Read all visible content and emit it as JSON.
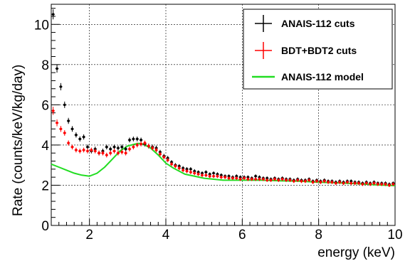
{
  "chart_data": {
    "type": "scatter",
    "title": "",
    "xlabel": "energy (keV)",
    "ylabel": "Rate (counts/keV/kg/day)",
    "xlim": [
      1,
      10
    ],
    "ylim": [
      0,
      11
    ],
    "x_ticks": [
      2,
      4,
      6,
      8,
      10
    ],
    "x_tick_labels": [
      "2",
      "4",
      "6",
      "8",
      "10"
    ],
    "y_ticks": [
      0,
      2,
      4,
      6,
      8,
      10
    ],
    "y_tick_labels": [
      "0",
      "2",
      "4",
      "6",
      "8",
      "10"
    ],
    "grid": true,
    "legend_position": "top-right",
    "series": [
      {
        "name": "ANAIS-112 cuts",
        "kind": "points-with-errors",
        "color": "#000000",
        "x": [
          1.05,
          1.15,
          1.25,
          1.35,
          1.45,
          1.55,
          1.65,
          1.75,
          1.85,
          1.95,
          2.05,
          2.15,
          2.25,
          2.35,
          2.45,
          2.55,
          2.65,
          2.75,
          2.85,
          2.95,
          3.05,
          3.15,
          3.25,
          3.35,
          3.45,
          3.55,
          3.65,
          3.75,
          3.85,
          3.95,
          4.05,
          4.15,
          4.25,
          4.35,
          4.45,
          4.55,
          4.65,
          4.75,
          4.85,
          4.95,
          5.05,
          5.15,
          5.25,
          5.35,
          5.45,
          5.55,
          5.65,
          5.75,
          5.85,
          5.95,
          6.05,
          6.15,
          6.25,
          6.35,
          6.45,
          6.55,
          6.65,
          6.75,
          6.85,
          6.95,
          7.05,
          7.15,
          7.25,
          7.35,
          7.45,
          7.55,
          7.65,
          7.75,
          7.85,
          7.95,
          8.05,
          8.15,
          8.25,
          8.35,
          8.45,
          8.55,
          8.65,
          8.75,
          8.85,
          8.95,
          9.05,
          9.15,
          9.25,
          9.35,
          9.45,
          9.55,
          9.65,
          9.75,
          9.85,
          9.95
        ],
        "y": [
          10.5,
          7.8,
          6.9,
          6.0,
          5.2,
          4.8,
          4.5,
          4.3,
          4.4,
          3.9,
          3.7,
          3.8,
          3.6,
          3.7,
          3.9,
          3.8,
          3.9,
          3.85,
          3.9,
          3.8,
          4.25,
          4.3,
          4.3,
          4.25,
          4.05,
          3.95,
          3.9,
          3.85,
          3.65,
          3.45,
          3.35,
          3.15,
          3.0,
          2.95,
          2.85,
          2.8,
          2.8,
          2.7,
          2.65,
          2.6,
          2.65,
          2.55,
          2.6,
          2.55,
          2.5,
          2.45,
          2.45,
          2.4,
          2.45,
          2.4,
          2.4,
          2.4,
          2.35,
          2.45,
          2.4,
          2.35,
          2.35,
          2.3,
          2.35,
          2.3,
          2.35,
          2.3,
          2.3,
          2.25,
          2.3,
          2.25,
          2.25,
          2.3,
          2.2,
          2.25,
          2.2,
          2.25,
          2.2,
          2.2,
          2.15,
          2.2,
          2.15,
          2.2,
          2.2,
          2.15,
          2.15,
          2.1,
          2.15,
          2.1,
          2.15,
          2.1,
          2.1,
          2.1,
          2.05,
          2.1
        ],
        "errors": [
          0.25,
          0.2,
          0.18,
          0.16,
          0.15,
          0.14,
          0.13,
          0.13,
          0.13,
          0.12,
          0.12,
          0.12,
          0.12,
          0.12,
          0.12,
          0.12,
          0.12,
          0.12,
          0.12,
          0.12,
          0.12,
          0.12,
          0.12,
          0.12,
          0.12,
          0.12,
          0.12,
          0.12,
          0.11,
          0.11,
          0.11,
          0.1,
          0.1,
          0.1,
          0.1,
          0.1,
          0.1,
          0.1,
          0.09,
          0.09,
          0.09,
          0.09,
          0.09,
          0.09,
          0.09,
          0.09,
          0.09,
          0.09,
          0.09,
          0.09,
          0.09,
          0.09,
          0.09,
          0.09,
          0.09,
          0.09,
          0.09,
          0.09,
          0.09,
          0.09,
          0.09,
          0.09,
          0.09,
          0.09,
          0.09,
          0.09,
          0.09,
          0.09,
          0.09,
          0.09,
          0.09,
          0.09,
          0.09,
          0.09,
          0.09,
          0.09,
          0.09,
          0.09,
          0.09,
          0.09,
          0.09,
          0.09,
          0.09,
          0.09,
          0.09,
          0.09,
          0.09,
          0.09,
          0.09,
          0.09
        ]
      },
      {
        "name": "BDT+BDT2 cuts",
        "kind": "points-with-errors",
        "color": "#ff0000",
        "x": [
          1.05,
          1.15,
          1.25,
          1.35,
          1.45,
          1.55,
          1.65,
          1.75,
          1.85,
          1.95,
          2.05,
          2.15,
          2.25,
          2.35,
          2.45,
          2.55,
          2.65,
          2.75,
          2.85,
          2.95,
          3.05,
          3.15,
          3.25,
          3.35,
          3.45,
          3.55,
          3.65,
          3.75,
          3.85,
          3.95,
          4.05,
          4.15,
          4.25,
          4.35,
          4.45,
          4.55,
          4.65,
          4.75,
          4.85,
          4.95,
          5.05,
          5.15,
          5.25,
          5.35,
          5.45,
          5.55,
          5.65,
          5.75,
          5.85,
          5.95,
          6.05,
          6.15,
          6.25,
          6.35,
          6.45,
          6.55,
          6.65,
          6.75,
          6.85,
          6.95,
          7.05,
          7.15,
          7.25,
          7.35,
          7.45,
          7.55,
          7.65,
          7.75,
          7.85,
          7.95,
          8.05,
          8.15,
          8.25,
          8.35,
          8.45,
          8.55,
          8.65,
          8.75,
          8.85,
          8.95,
          9.05,
          9.15,
          9.25,
          9.35,
          9.45,
          9.55,
          9.65,
          9.75,
          9.85,
          9.95
        ],
        "y": [
          5.7,
          5.1,
          4.8,
          4.6,
          4.1,
          3.9,
          3.75,
          3.7,
          3.75,
          3.7,
          3.75,
          3.7,
          3.6,
          3.6,
          3.5,
          3.6,
          3.7,
          3.6,
          3.65,
          3.6,
          3.8,
          3.9,
          4.0,
          4.05,
          4.1,
          3.95,
          3.85,
          3.75,
          3.55,
          3.4,
          3.25,
          3.05,
          2.95,
          2.85,
          2.75,
          2.7,
          2.65,
          2.6,
          2.55,
          2.5,
          2.5,
          2.45,
          2.45,
          2.45,
          2.4,
          2.4,
          2.35,
          2.35,
          2.35,
          2.3,
          2.35,
          2.3,
          2.3,
          2.3,
          2.3,
          2.3,
          2.25,
          2.25,
          2.3,
          2.25,
          2.3,
          2.25,
          2.25,
          2.2,
          2.25,
          2.2,
          2.2,
          2.25,
          2.15,
          2.2,
          2.15,
          2.2,
          2.15,
          2.15,
          2.1,
          2.15,
          2.1,
          2.15,
          2.1,
          2.1,
          2.1,
          2.05,
          2.1,
          2.05,
          2.1,
          2.05,
          2.05,
          2.05,
          2.0,
          2.05
        ],
        "errors": [
          0.2,
          0.17,
          0.15,
          0.14,
          0.13,
          0.12,
          0.12,
          0.12,
          0.12,
          0.12,
          0.12,
          0.12,
          0.12,
          0.12,
          0.12,
          0.12,
          0.12,
          0.12,
          0.12,
          0.12,
          0.12,
          0.12,
          0.12,
          0.12,
          0.12,
          0.12,
          0.12,
          0.12,
          0.11,
          0.11,
          0.11,
          0.1,
          0.1,
          0.1,
          0.1,
          0.1,
          0.1,
          0.1,
          0.09,
          0.09,
          0.09,
          0.09,
          0.09,
          0.09,
          0.09,
          0.09,
          0.09,
          0.09,
          0.09,
          0.09,
          0.09,
          0.09,
          0.09,
          0.09,
          0.09,
          0.09,
          0.09,
          0.09,
          0.09,
          0.09,
          0.09,
          0.09,
          0.09,
          0.09,
          0.09,
          0.09,
          0.09,
          0.09,
          0.09,
          0.09,
          0.09,
          0.09,
          0.09,
          0.09,
          0.09,
          0.09,
          0.09,
          0.09,
          0.09,
          0.09,
          0.09,
          0.09,
          0.09,
          0.09,
          0.09,
          0.09,
          0.09,
          0.09,
          0.09,
          0.09
        ]
      },
      {
        "name": "ANAIS-112 model",
        "kind": "line",
        "color": "#22dd22",
        "x": [
          1.0,
          1.2,
          1.4,
          1.6,
          1.8,
          2.0,
          2.2,
          2.4,
          2.6,
          2.8,
          3.0,
          3.2,
          3.3,
          3.4,
          3.6,
          3.8,
          4.0,
          4.2,
          4.5,
          5.0,
          5.5,
          6.0,
          6.5,
          7.0,
          7.5,
          8.0,
          8.5,
          9.0,
          9.5,
          10.0
        ],
        "y": [
          3.05,
          2.9,
          2.75,
          2.6,
          2.5,
          2.45,
          2.6,
          2.9,
          3.3,
          3.7,
          3.95,
          4.05,
          4.08,
          4.05,
          3.85,
          3.5,
          3.1,
          2.85,
          2.55,
          2.35,
          2.25,
          2.25,
          2.25,
          2.22,
          2.2,
          2.15,
          2.12,
          2.08,
          2.02,
          1.98
        ]
      }
    ]
  }
}
